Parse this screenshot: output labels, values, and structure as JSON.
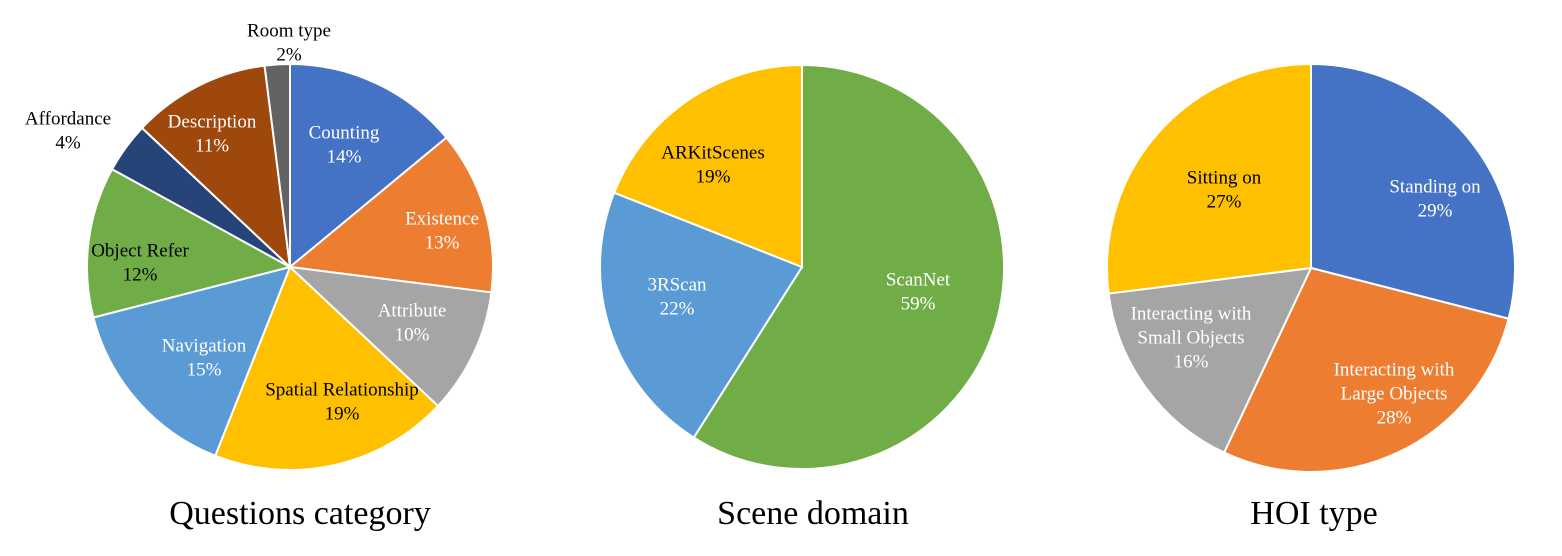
{
  "chart_data": [
    {
      "type": "pie",
      "title": "Questions category",
      "slices": [
        {
          "label": "Counting",
          "value": 14,
          "pct": "14%",
          "color": "#4472C4",
          "label_color": "#ffffff"
        },
        {
          "label": "Existence",
          "value": 13,
          "pct": "13%",
          "color": "#ED7D31",
          "label_color": "#ffffff"
        },
        {
          "label": "Attribute",
          "value": 10,
          "pct": "10%",
          "color": "#A5A5A5",
          "label_color": "#ffffff"
        },
        {
          "label": "Spatial Relationship",
          "value": 19,
          "pct": "19%",
          "color": "#FFC000",
          "label_color": "#000000"
        },
        {
          "label": "Navigation",
          "value": 15,
          "pct": "15%",
          "color": "#5B9BD5",
          "label_color": "#ffffff"
        },
        {
          "label": "Object Refer",
          "value": 12,
          "pct": "12%",
          "color": "#70AD47",
          "label_color": "#000000"
        },
        {
          "label": "Affordance",
          "value": 4,
          "pct": "4%",
          "color": "#264478",
          "label_color": "#000000"
        },
        {
          "label": "Description",
          "value": 11,
          "pct": "11%",
          "color": "#9E480E",
          "label_color": "#ffffff"
        },
        {
          "label": "Room type",
          "value": 2,
          "pct": "2%",
          "color": "#636363",
          "label_color": "#000000"
        }
      ]
    },
    {
      "type": "pie",
      "title": "Scene domain",
      "slices": [
        {
          "label": "ScanNet",
          "value": 59,
          "pct": "59%",
          "color": "#70AD47",
          "label_color": "#ffffff"
        },
        {
          "label": "3RScan",
          "value": 22,
          "pct": "22%",
          "color": "#5B9BD5",
          "label_color": "#ffffff"
        },
        {
          "label": "ARKitScenes",
          "value": 19,
          "pct": "19%",
          "color": "#FFC000",
          "label_color": "#000000"
        }
      ]
    },
    {
      "type": "pie",
      "title": "HOI type",
      "slices": [
        {
          "label": "Standing on",
          "value": 29,
          "pct": "29%",
          "color": "#4472C4",
          "label_color": "#ffffff"
        },
        {
          "label": "Interacting with\nLarge Objects",
          "value": 28,
          "pct": "28%",
          "color": "#ED7D31",
          "label_color": "#ffffff"
        },
        {
          "label": "Interacting with\nSmall Objects",
          "value": 16,
          "pct": "16%",
          "color": "#A5A5A5",
          "label_color": "#ffffff"
        },
        {
          "label": "Sitting on",
          "value": 27,
          "pct": "27%",
          "color": "#FFC000",
          "label_color": "#000000"
        }
      ]
    }
  ]
}
